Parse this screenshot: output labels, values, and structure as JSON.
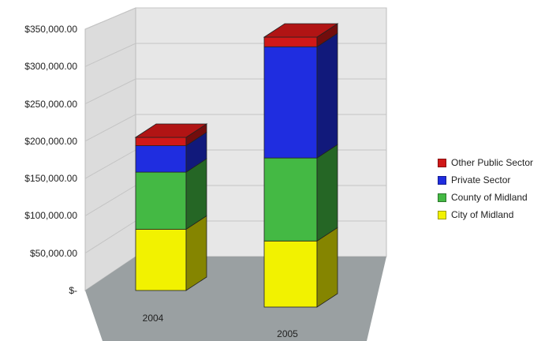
{
  "chart_data": {
    "type": "bar",
    "stacked": true,
    "three_d": true,
    "categories": [
      "2004",
      "2005"
    ],
    "series": [
      {
        "name": "City of Midland",
        "color": "#f2f200",
        "values": [
          88000,
          82000
        ]
      },
      {
        "name": "County of Midland",
        "color": "#44b944",
        "values": [
          82000,
          103000
        ]
      },
      {
        "name": "Private Sector",
        "color": "#1f2de0",
        "values": [
          38000,
          138000
        ]
      },
      {
        "name": "Other Public Sector",
        "color": "#d01818",
        "values": [
          12000,
          12000
        ]
      }
    ],
    "y_ticks": [
      "$-",
      "$50,000.00",
      "$100,000.00",
      "$150,000.00",
      "$200,000.00",
      "$250,000.00",
      "$300,000.00",
      "$350,000.00"
    ],
    "ylim": [
      0,
      350000
    ],
    "grid": true,
    "legend_position": "right",
    "legend_order": [
      "Other Public Sector",
      "Private Sector",
      "County of Midland",
      "City of Midland"
    ],
    "colors": {
      "wall": "#e7e7e7",
      "floor": "#9aa0a2",
      "gridline": "#c4c4c4"
    }
  }
}
